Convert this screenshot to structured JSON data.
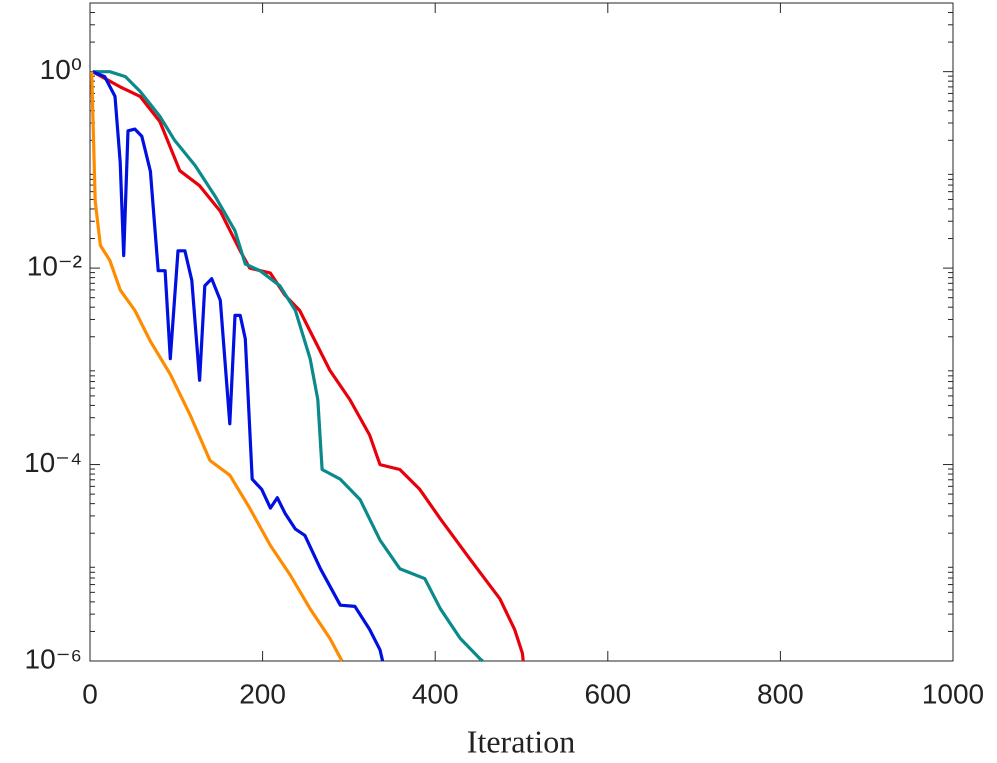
{
  "chart_data": {
    "type": "line",
    "xlabel": "Iteration",
    "log_y": true,
    "xlim": [
      0,
      1000
    ],
    "xticks": [
      0,
      200,
      400,
      600,
      800,
      1000
    ],
    "ylim": [
      1e-06,
      5
    ],
    "yticks": [
      {
        "value": 1e-06,
        "label": "10⁻⁶"
      },
      {
        "value": 0.0001,
        "label": "10⁻⁴"
      },
      {
        "value": 0.01,
        "label": "10⁻²"
      },
      {
        "value": 1,
        "label": "10⁰"
      }
    ],
    "series": [
      {
        "color": "#e8000b",
        "x": [
          3,
          35,
          58,
          81,
          104,
          127,
          151,
          174,
          185,
          209,
          226,
          243,
          278,
          301,
          324,
          336,
          359,
          382,
          406,
          440,
          475,
          492,
          501,
          502
        ],
        "values": [
          1,
          0.7,
          0.56,
          0.31,
          0.098,
          0.069,
          0.038,
          0.015,
          0.01,
          0.0089,
          0.0053,
          0.0037,
          0.00091,
          0.00046,
          0.0002,
          0.0001,
          8.9e-05,
          5.6e-05,
          2.8e-05,
          1.1e-05,
          4.3e-06,
          2.1e-06,
          1.2e-06,
          1e-06
        ]
      },
      {
        "color": "#0a8a8a",
        "x": [
          3,
          23,
          41,
          58,
          81,
          98,
          122,
          145,
          168,
          180,
          197,
          220,
          238,
          255,
          264,
          269,
          290,
          313,
          336,
          359,
          388,
          406,
          429,
          452,
          455
        ],
        "values": [
          1,
          1,
          0.89,
          0.63,
          0.35,
          0.2,
          0.11,
          0.054,
          0.024,
          0.011,
          0.0094,
          0.0066,
          0.0037,
          0.0012,
          0.00046,
          8.9e-05,
          7.1e-05,
          4.4e-05,
          1.7e-05,
          8.7e-06,
          6.9e-06,
          3.4e-06,
          1.7e-06,
          1.05e-06,
          1e-06
        ]
      },
      {
        "color": "#0010e0",
        "x": [
          3,
          17,
          29,
          35,
          39,
          44,
          52,
          60,
          70,
          79,
          87,
          93,
          102,
          110,
          118,
          127,
          133,
          141,
          151,
          162,
          168,
          174,
          180,
          188,
          199,
          209,
          217,
          226,
          238,
          249,
          267,
          290,
          307,
          324,
          336,
          339
        ],
        "values": [
          1,
          0.89,
          0.56,
          0.12,
          0.0134,
          0.25,
          0.26,
          0.22,
          0.097,
          0.0094,
          0.0094,
          0.0012,
          0.015,
          0.015,
          0.0075,
          0.00072,
          0.0066,
          0.0078,
          0.0047,
          0.00026,
          0.0033,
          0.0033,
          0.0019,
          7.1e-05,
          5.6e-05,
          3.6e-05,
          4.6e-05,
          3.2e-05,
          2.2e-05,
          1.9e-05,
          8.7e-06,
          3.7e-06,
          3.6e-06,
          2.1e-06,
          1.3e-06,
          1e-06
        ]
      },
      {
        "color": "#ff8c00",
        "x": [
          2,
          6,
          12,
          23,
          35,
          52,
          70,
          93,
          116,
          139,
          162,
          185,
          209,
          232,
          255,
          278,
          292
        ],
        "values": [
          1,
          0.048,
          0.017,
          0.012,
          0.006,
          0.0037,
          0.0018,
          0.00083,
          0.00032,
          0.00011,
          7.8e-05,
          3.6e-05,
          1.5e-05,
          7.5e-06,
          3.4e-06,
          1.7e-06,
          1e-06
        ]
      }
    ]
  }
}
